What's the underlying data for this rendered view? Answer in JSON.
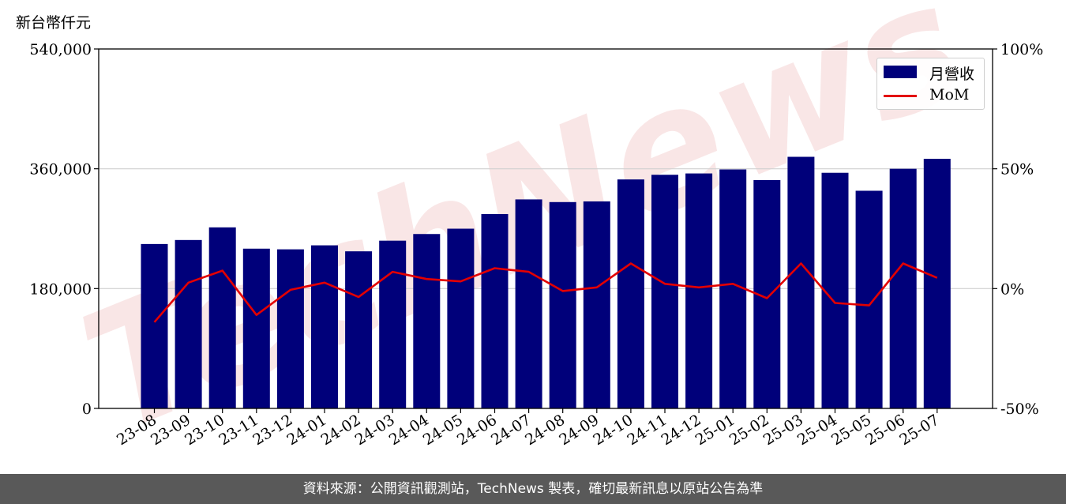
{
  "unit_label": "新台幣仟元",
  "footer_text": "資料來源：公開資訊觀測站，TechNews 製表，確切最新訊息以原站公告為準",
  "colors": {
    "bar": "#00007a",
    "line": "#e30000",
    "footer_bg": "#595959",
    "watermark": "#f2c9c9"
  },
  "watermark_text": "TechNews",
  "chart_data": {
    "type": "bar",
    "categories": [
      "23-08",
      "23-09",
      "23-10",
      "23-11",
      "23-12",
      "24-01",
      "24-02",
      "24-03",
      "24-04",
      "24-05",
      "24-06",
      "24-07",
      "24-08",
      "24-09",
      "24-10",
      "24-11",
      "24-12",
      "25-01",
      "25-02",
      "25-03",
      "25-04",
      "25-05",
      "25-06",
      "25-07"
    ],
    "series": [
      {
        "name": "月營收",
        "type": "bar",
        "axis": "left",
        "values": [
          247000,
          253000,
          272000,
          240000,
          239000,
          245000,
          236000,
          252000,
          262000,
          270000,
          292000,
          314000,
          310000,
          311000,
          344000,
          351000,
          353000,
          359000,
          343000,
          378000,
          354000,
          327000,
          360000,
          375000
        ]
      },
      {
        "name": "MoM",
        "type": "line",
        "axis": "right",
        "values": [
          -14,
          2.5,
          7.5,
          -11,
          -0.5,
          2.5,
          -3.5,
          7,
          4,
          3,
          8.5,
          7,
          -1,
          0.5,
          10.5,
          2,
          0.5,
          2,
          -4,
          10.5,
          -6,
          -7,
          10.5,
          4.5
        ]
      }
    ],
    "y_left": {
      "ylim": [
        0,
        540000
      ],
      "ticks": [
        0,
        180000,
        360000,
        540000
      ],
      "tick_labels": [
        "0",
        "180,000",
        "360,000",
        "540,000"
      ]
    },
    "y_right": {
      "ylim": [
        -50,
        100
      ],
      "ticks": [
        -50,
        0,
        50,
        100
      ],
      "tick_labels": [
        "-50%",
        "0%",
        "50%",
        "100%"
      ]
    },
    "grid": "horizontal",
    "legend_position": "top-right"
  }
}
